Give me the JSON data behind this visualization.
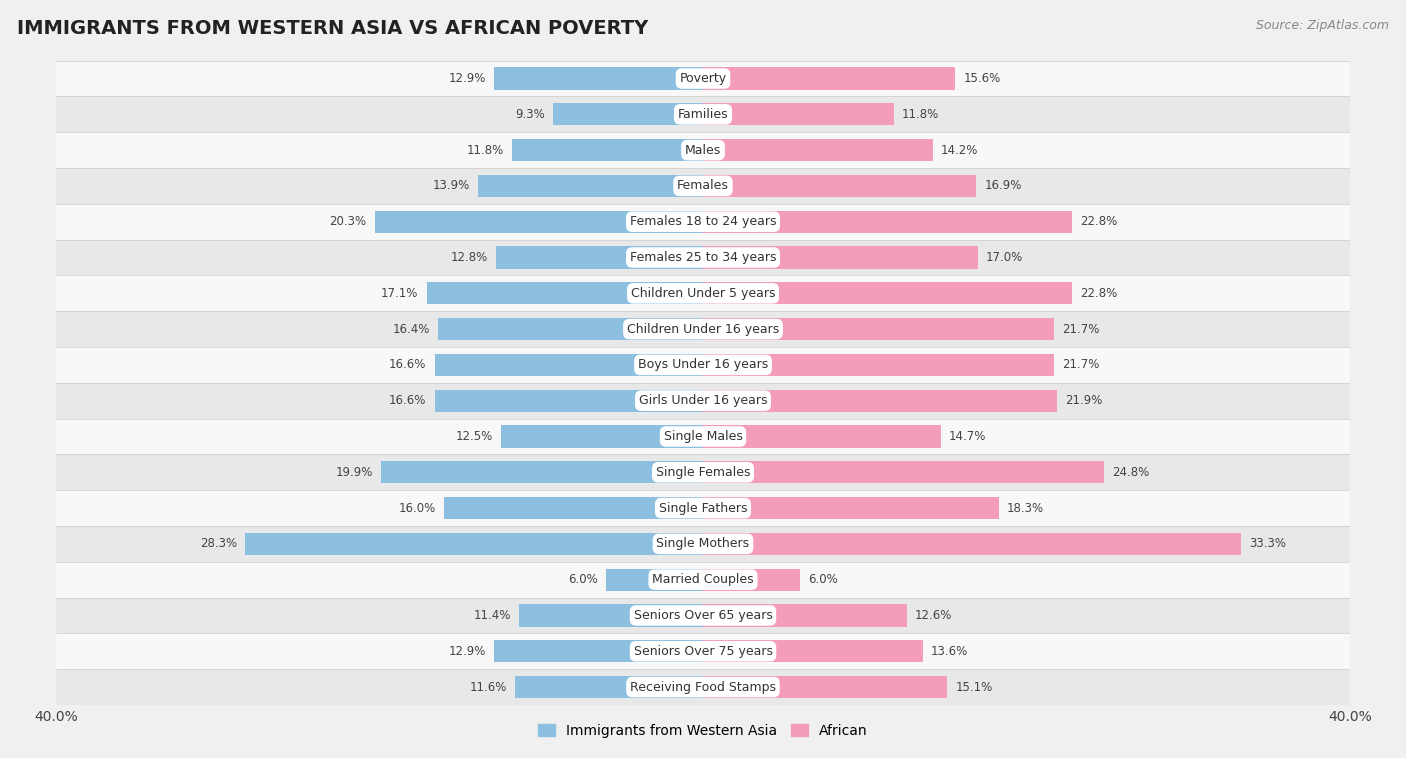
{
  "title": "IMMIGRANTS FROM WESTERN ASIA VS AFRICAN POVERTY",
  "source": "Source: ZipAtlas.com",
  "categories": [
    "Poverty",
    "Families",
    "Males",
    "Females",
    "Females 18 to 24 years",
    "Females 25 to 34 years",
    "Children Under 5 years",
    "Children Under 16 years",
    "Boys Under 16 years",
    "Girls Under 16 years",
    "Single Males",
    "Single Females",
    "Single Fathers",
    "Single Mothers",
    "Married Couples",
    "Seniors Over 65 years",
    "Seniors Over 75 years",
    "Receiving Food Stamps"
  ],
  "western_asia": [
    12.9,
    9.3,
    11.8,
    13.9,
    20.3,
    12.8,
    17.1,
    16.4,
    16.6,
    16.6,
    12.5,
    19.9,
    16.0,
    28.3,
    6.0,
    11.4,
    12.9,
    11.6
  ],
  "african": [
    15.6,
    11.8,
    14.2,
    16.9,
    22.8,
    17.0,
    22.8,
    21.7,
    21.7,
    21.9,
    14.7,
    24.8,
    18.3,
    33.3,
    6.0,
    12.6,
    13.6,
    15.1
  ],
  "western_asia_color": "#8dbfe0",
  "african_color": "#f49dba",
  "background_color": "#f0f0f0",
  "row_light_color": "#f8f8f8",
  "row_dark_color": "#e8e8e8",
  "xlim": 40.0,
  "legend_label_left": "Immigrants from Western Asia",
  "legend_label_right": "African",
  "title_fontsize": 14,
  "source_fontsize": 9,
  "bar_height": 0.62,
  "label_fontsize": 8.5,
  "category_fontsize": 9,
  "value_fontsize": 8.5
}
